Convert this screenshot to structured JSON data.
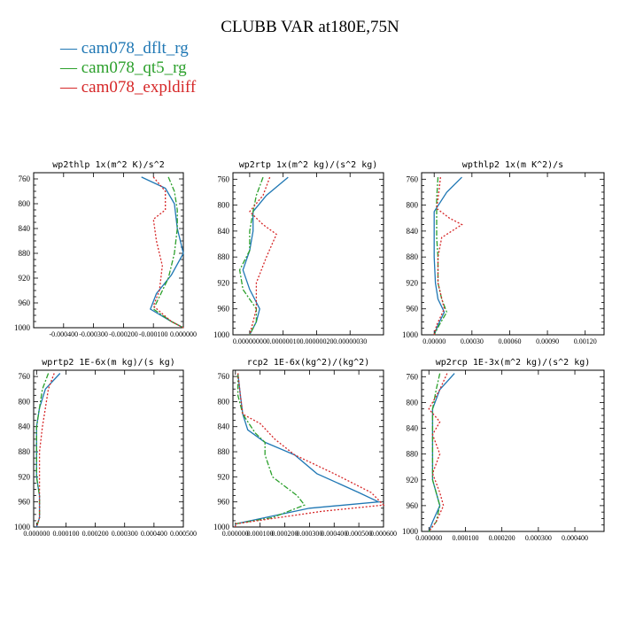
{
  "title": "CLUBB VAR at180E,75N",
  "legend": [
    {
      "label": "cam078_dflt_rg",
      "color": "#1f77b4"
    },
    {
      "label": "cam078_qt5_rg",
      "color": "#2ca02c"
    },
    {
      "label": "cam078_expldiff",
      "color": "#d62728"
    }
  ],
  "chart_data": [
    {
      "type": "line",
      "title": "wp2thlp   1x(m^2 K)/s^2",
      "xlim": [
        -0.0005,
        0.0
      ],
      "ylim": [
        1000,
        750
      ],
      "yticks": [
        760,
        800,
        840,
        880,
        920,
        960,
        1000
      ],
      "xticks": [
        -0.0004,
        -0.0003,
        -0.0002,
        -0.0001,
        0.0
      ],
      "xtick_labels": [
        "-0.000400",
        "-0.000300",
        "-0.000200",
        "-0.000100",
        "0.000000"
      ],
      "series": [
        {
          "name": "cam078_dflt_rg",
          "x": [
            -0.00014,
            -6e-05,
            -3e-05,
            -2e-05,
            0.0,
            -4e-05,
            -9e-05,
            -0.00011,
            -4e-05,
            0.0
          ],
          "y": [
            757,
            775,
            800,
            840,
            880,
            915,
            945,
            970,
            990,
            1000
          ]
        },
        {
          "name": "cam078_qt5_rg",
          "x": [
            -5e-05,
            -3e-05,
            -2e-05,
            -2e-05,
            -3e-05,
            -5e-05,
            -8e-05,
            -0.0001,
            -4e-05,
            0.0
          ],
          "y": [
            757,
            780,
            810,
            840,
            880,
            920,
            950,
            970,
            990,
            1000
          ]
        },
        {
          "name": "cam078_expldiff",
          "x": [
            -0.0001,
            -6e-05,
            -6e-05,
            -0.0001,
            -9e-05,
            -7e-05,
            -8e-05,
            -0.0001,
            -4e-05,
            0.0
          ],
          "y": [
            757,
            780,
            810,
            825,
            860,
            900,
            940,
            965,
            990,
            1000
          ]
        }
      ]
    },
    {
      "type": "line",
      "title": "wp2rtp   1x(m^2 kg)/(s^2 kg)",
      "xlim": [
        -5e-08,
        4e-07
      ],
      "ylim": [
        1000,
        750
      ],
      "yticks": [
        760,
        800,
        840,
        880,
        920,
        960,
        1000
      ],
      "xticks": [
        0.0,
        1e-07,
        2e-07,
        3e-07
      ],
      "xtick_labels": [
        "0.00000000",
        "0.00000010",
        "0.00000020",
        "0.00000030"
      ],
      "series": [
        {
          "name": "cam078_dflt_rg",
          "x": [
            1.15e-07,
            5e-08,
            1e-08,
            1e-08,
            0.0,
            -2e-08,
            0.0,
            3e-08,
            2e-08,
            0.0
          ],
          "y": [
            757,
            785,
            810,
            840,
            870,
            900,
            930,
            960,
            980,
            1000
          ]
        },
        {
          "name": "cam078_qt5_rg",
          "x": [
            4e-08,
            2e-08,
            1e-08,
            0.0,
            0.0,
            -3e-08,
            -2e-08,
            2e-08,
            2e-08,
            0.0
          ],
          "y": [
            757,
            785,
            810,
            840,
            870,
            900,
            930,
            960,
            980,
            1000
          ]
        },
        {
          "name": "cam078_expldiff",
          "x": [
            6e-08,
            4e-08,
            0.0,
            4e-08,
            8e-08,
            5e-08,
            2e-08,
            2e-08,
            1e-08,
            0.0
          ],
          "y": [
            757,
            785,
            810,
            830,
            845,
            880,
            920,
            960,
            980,
            1000
          ]
        }
      ]
    },
    {
      "type": "line",
      "title": "wpthlp2   1x(m K^2)/s",
      "xlim": [
        -0.0001,
        0.00135
      ],
      "ylim": [
        1000,
        750
      ],
      "yticks": [
        760,
        800,
        840,
        880,
        920,
        960,
        1000
      ],
      "xticks": [
        0.0,
        0.0003,
        0.0006,
        0.0009,
        0.0012
      ],
      "xtick_labels": [
        "0.00000",
        "0.00030",
        "0.00060",
        "0.00090",
        "0.00120"
      ],
      "series": [
        {
          "name": "cam078_dflt_rg",
          "x": [
            0.00022,
            0.0001,
            0.0,
            0.0,
            0.0,
            1e-05,
            3e-05,
            8e-05,
            3e-05,
            0.0
          ],
          "y": [
            757,
            780,
            810,
            840,
            880,
            920,
            945,
            965,
            985,
            1000
          ]
        },
        {
          "name": "cam078_qt5_rg",
          "x": [
            3e-05,
            2e-05,
            2e-05,
            2e-05,
            3e-05,
            3e-05,
            6e-05,
            0.0001,
            4e-05,
            0.0
          ],
          "y": [
            757,
            790,
            820,
            850,
            880,
            920,
            945,
            965,
            985,
            1000
          ]
        },
        {
          "name": "cam078_expldiff",
          "x": [
            5e-05,
            4e-05,
            2e-05,
            0.00012,
            0.00022,
            6e-05,
            3e-05,
            3e-05,
            8e-05,
            2e-05,
            0.0
          ],
          "y": [
            757,
            775,
            805,
            820,
            830,
            850,
            880,
            920,
            960,
            985,
            1000
          ]
        }
      ]
    },
    {
      "type": "line",
      "title": "wprtp2   1E-6x(m kg)/(s kg)",
      "xlim": [
        -1e-05,
        0.0005
      ],
      "ylim": [
        1000,
        750
      ],
      "yticks": [
        760,
        800,
        840,
        880,
        920,
        960,
        1000
      ],
      "xticks": [
        0.0,
        0.0001,
        0.0002,
        0.0003,
        0.0004,
        0.0005
      ],
      "xtick_labels": [
        "0.000000",
        "0.000100",
        "0.000200",
        "0.000300",
        "0.000400",
        "0.000500"
      ],
      "series": [
        {
          "name": "cam078_dflt_rg",
          "x": [
            8e-05,
            3e-05,
            1e-05,
            0.0,
            0.0,
            0.0,
            1e-05,
            1e-05,
            1e-05,
            0.0
          ],
          "y": [
            755,
            780,
            810,
            840,
            880,
            920,
            950,
            970,
            985,
            1000
          ]
        },
        {
          "name": "cam078_qt5_rg",
          "x": [
            4e-05,
            2e-05,
            1e-05,
            0.0,
            0.0,
            0.0,
            1e-05,
            1e-05,
            1e-05,
            0.0
          ],
          "y": [
            755,
            780,
            810,
            840,
            880,
            920,
            950,
            970,
            985,
            1000
          ]
        },
        {
          "name": "cam078_expldiff",
          "x": [
            6e-05,
            4e-05,
            3e-05,
            2e-05,
            1e-05,
            1e-05,
            1e-05,
            1e-05,
            1e-05,
            0.0
          ],
          "y": [
            755,
            780,
            810,
            840,
            880,
            920,
            950,
            970,
            985,
            1000
          ]
        }
      ]
    },
    {
      "type": "line",
      "title": "rcp2   1E-6x(kg^2)/(kg^2)",
      "xlim": [
        -1e-05,
        0.0006
      ],
      "ylim": [
        1000,
        750
      ],
      "yticks": [
        760,
        800,
        840,
        880,
        920,
        960,
        1000
      ],
      "xticks": [
        0.0,
        0.0001,
        0.0002,
        0.0003,
        0.0004,
        0.0005,
        0.0006
      ],
      "xtick_labels": [
        "0.000000",
        "0.000100",
        "0.000200",
        "0.000300",
        "0.000400",
        "0.000500",
        "0.000600"
      ],
      "series": [
        {
          "name": "cam078_dflt_rg",
          "x": [
            1e-05,
            2e-05,
            3e-05,
            5e-05,
            0.00012,
            0.00024,
            0.00033,
            0.0005,
            0.00058,
            0.0003,
            0.0,
            0.0
          ],
          "y": [
            755,
            790,
            820,
            845,
            865,
            885,
            915,
            945,
            960,
            970,
            995,
            1000
          ]
        },
        {
          "name": "cam078_qt5_rg",
          "x": [
            1e-05,
            1e-05,
            3e-05,
            8e-05,
            0.00012,
            0.00012,
            0.00015,
            0.00025,
            0.00028,
            0.00015,
            0.0,
            0.0
          ],
          "y": [
            755,
            790,
            820,
            850,
            865,
            885,
            920,
            950,
            965,
            985,
            995,
            1000
          ]
        },
        {
          "name": "cam078_expldiff",
          "x": [
            1e-05,
            2e-05,
            3e-05,
            0.0001,
            0.00016,
            0.00024,
            0.0004,
            0.00055,
            0.0006,
            0.00035,
            0.0,
            0.0
          ],
          "y": [
            755,
            790,
            820,
            835,
            860,
            885,
            915,
            945,
            965,
            975,
            995,
            1000
          ]
        }
      ]
    },
    {
      "type": "line",
      "title": "wp2rcp   1E-3x(m^2 kg)/(s^2 kg)",
      "xlim": [
        -2e-05,
        0.00048
      ],
      "ylim": [
        1000,
        750
      ],
      "yticks": [
        760,
        800,
        840,
        880,
        920,
        960,
        1000
      ],
      "xticks": [
        0.0,
        0.0001,
        0.0002,
        0.0003,
        0.0004
      ],
      "xtick_labels": [
        "0.000000",
        "0.000100",
        "0.000200",
        "0.000300",
        "0.000400"
      ],
      "series": [
        {
          "name": "cam078_dflt_rg",
          "x": [
            7e-05,
            3e-05,
            1e-05,
            1e-05,
            1e-05,
            1e-05,
            2e-05,
            3e-05,
            1e-05,
            0.0
          ],
          "y": [
            755,
            780,
            810,
            850,
            890,
            920,
            940,
            960,
            985,
            1000
          ]
        },
        {
          "name": "cam078_qt5_rg",
          "x": [
            3e-05,
            2e-05,
            1e-05,
            1e-05,
            1e-05,
            1e-05,
            2e-05,
            3e-05,
            2e-05,
            0.0
          ],
          "y": [
            755,
            780,
            810,
            850,
            890,
            920,
            940,
            960,
            985,
            1000
          ]
        },
        {
          "name": "cam078_expldiff",
          "x": [
            5e-05,
            3e-05,
            0.0,
            3e-05,
            1e-05,
            3e-05,
            1e-05,
            3e-05,
            4e-05,
            2e-05,
            0.0
          ],
          "y": [
            755,
            780,
            810,
            830,
            850,
            880,
            910,
            940,
            960,
            985,
            1000
          ]
        }
      ]
    }
  ]
}
